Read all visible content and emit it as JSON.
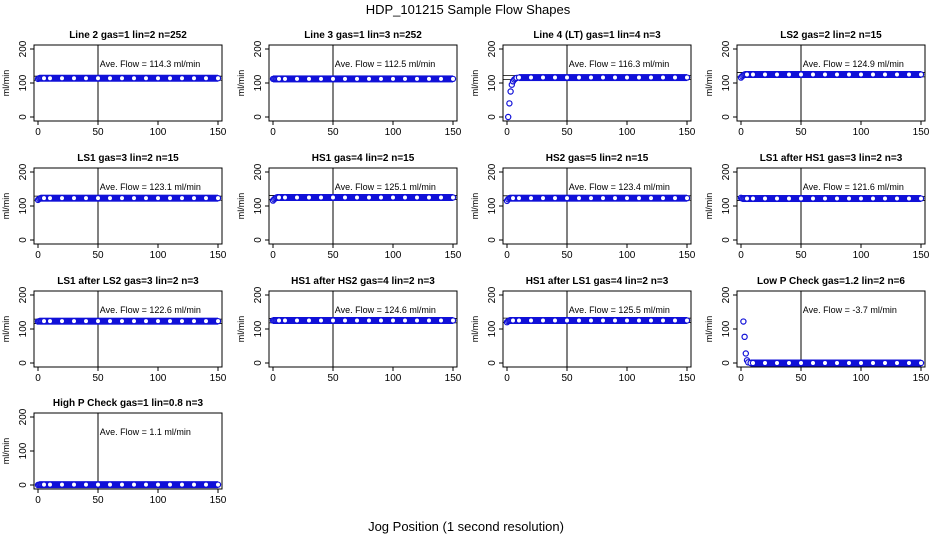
{
  "title": "HDP_101215  Sample Flow Shapes",
  "xlabel": "Jog Position (1 second resolution)",
  "colors": {
    "points": "#1010d8",
    "axis": "#000000"
  },
  "chart_data": [
    {
      "type": "scatter",
      "title": "Line 2 gas=1 lin=2 n=252",
      "ylabel": "ml/min",
      "annotation": "Ave. Flow =  114.3  ml/min",
      "avg": 114.3,
      "xlim": [
        0,
        150
      ],
      "ylim": [
        0,
        200
      ],
      "xticks": [
        0,
        50,
        100,
        150
      ],
      "yticks": [
        0,
        100,
        200
      ],
      "vline": 50,
      "hlines": [
        108,
        120
      ],
      "x": [
        0,
        1,
        2,
        3,
        4,
        5,
        10,
        20,
        30,
        40,
        50,
        60,
        70,
        80,
        90,
        100,
        110,
        120,
        130,
        140,
        150
      ],
      "y": [
        112,
        114,
        114,
        114,
        114,
        114,
        114,
        114,
        114,
        114,
        114,
        114,
        114,
        114,
        114,
        114,
        114,
        114,
        114,
        114,
        114
      ]
    },
    {
      "type": "scatter",
      "title": "Line 3 gas=1 lin=3 n=252",
      "ylabel": "ml/min",
      "annotation": "Ave. Flow =  112.5  ml/min",
      "avg": 112.5,
      "xlim": [
        0,
        150
      ],
      "ylim": [
        0,
        200
      ],
      "xticks": [
        0,
        50,
        100,
        150
      ],
      "yticks": [
        0,
        100,
        200
      ],
      "vline": 50,
      "hlines": [],
      "x": [
        0,
        1,
        2,
        3,
        4,
        5,
        10,
        20,
        30,
        40,
        50,
        60,
        70,
        80,
        90,
        100,
        110,
        120,
        130,
        140,
        150
      ],
      "y": [
        112,
        112,
        112,
        112,
        112,
        112,
        112,
        112,
        112,
        112,
        112,
        112,
        112,
        112,
        112,
        112,
        112,
        112,
        112,
        112,
        112
      ]
    },
    {
      "type": "scatter",
      "title": "Line 4 (LT) gas=1 lin=4 n=3",
      "ylabel": "ml/min",
      "annotation": "Ave. Flow =  116.3  ml/min",
      "avg": 116.3,
      "xlim": [
        0,
        150
      ],
      "ylim": [
        0,
        200
      ],
      "xticks": [
        0,
        50,
        100,
        150
      ],
      "yticks": [
        0,
        100,
        200
      ],
      "vline": 50,
      "hlines": [
        110,
        122
      ],
      "x": [
        1,
        2,
        3,
        4,
        5,
        6,
        7,
        8,
        10,
        20,
        30,
        40,
        50,
        60,
        70,
        80,
        90,
        100,
        110,
        120,
        130,
        140,
        150
      ],
      "y": [
        0,
        40,
        75,
        95,
        105,
        110,
        113,
        115,
        116,
        116,
        116,
        116,
        116,
        116,
        116,
        116,
        116,
        116,
        116,
        116,
        116,
        116,
        116
      ]
    },
    {
      "type": "scatter",
      "title": "LS2 gas=2 lin=2 n=15",
      "ylabel": "ml/min",
      "annotation": "Ave. Flow =  124.9  ml/min",
      "avg": 124.9,
      "xlim": [
        0,
        150
      ],
      "ylim": [
        0,
        200
      ],
      "xticks": [
        0,
        50,
        100,
        150
      ],
      "yticks": [
        0,
        100,
        200
      ],
      "vline": 50,
      "hlines": [
        118,
        131
      ],
      "x": [
        0,
        1,
        2,
        3,
        4,
        5,
        10,
        20,
        30,
        40,
        50,
        60,
        70,
        80,
        90,
        100,
        110,
        120,
        130,
        140,
        150
      ],
      "y": [
        116,
        120,
        123,
        125,
        125,
        125,
        125,
        125,
        125,
        125,
        125,
        125,
        125,
        125,
        125,
        125,
        125,
        125,
        125,
        125,
        125
      ]
    },
    {
      "type": "scatter",
      "title": "LS1 gas=3 lin=2 n=15",
      "ylabel": "ml/min",
      "annotation": "Ave. Flow =  123.1  ml/min",
      "avg": 123.1,
      "xlim": [
        0,
        150
      ],
      "ylim": [
        0,
        200
      ],
      "xticks": [
        0,
        50,
        100,
        150
      ],
      "yticks": [
        0,
        100,
        200
      ],
      "vline": 50,
      "hlines": [
        117,
        129
      ],
      "x": [
        0,
        1,
        2,
        3,
        4,
        5,
        10,
        20,
        30,
        40,
        50,
        60,
        70,
        80,
        90,
        100,
        110,
        120,
        130,
        140,
        150
      ],
      "y": [
        118,
        121,
        123,
        123,
        123,
        123,
        123,
        123,
        123,
        123,
        123,
        123,
        123,
        123,
        123,
        123,
        123,
        123,
        123,
        123,
        123
      ]
    },
    {
      "type": "scatter",
      "title": "HS1 gas=4 lin=2 n=15",
      "ylabel": "ml/min",
      "annotation": "Ave. Flow =  125.1  ml/min",
      "avg": 125.1,
      "xlim": [
        0,
        150
      ],
      "ylim": [
        0,
        200
      ],
      "xticks": [
        0,
        50,
        100,
        150
      ],
      "yticks": [
        0,
        100,
        200
      ],
      "vline": 50,
      "hlines": [
        119,
        131
      ],
      "x": [
        0,
        1,
        2,
        3,
        4,
        5,
        10,
        20,
        30,
        40,
        50,
        60,
        70,
        80,
        90,
        100,
        110,
        120,
        130,
        140,
        150
      ],
      "y": [
        116,
        120,
        123,
        125,
        125,
        125,
        125,
        125,
        125,
        125,
        125,
        125,
        125,
        125,
        125,
        125,
        125,
        125,
        125,
        125,
        125
      ]
    },
    {
      "type": "scatter",
      "title": "HS2 gas=5 lin=2 n=15",
      "ylabel": "ml/min",
      "annotation": "Ave. Flow =  123.4  ml/min",
      "avg": 123.4,
      "xlim": [
        0,
        150
      ],
      "ylim": [
        0,
        200
      ],
      "xticks": [
        0,
        50,
        100,
        150
      ],
      "yticks": [
        0,
        100,
        200
      ],
      "vline": 50,
      "hlines": [
        117,
        130
      ],
      "x": [
        0,
        1,
        2,
        3,
        4,
        5,
        10,
        20,
        30,
        40,
        50,
        60,
        70,
        80,
        90,
        100,
        110,
        120,
        130,
        140,
        150
      ],
      "y": [
        115,
        120,
        123,
        123,
        123,
        123,
        123,
        123,
        123,
        123,
        123,
        123,
        123,
        123,
        123,
        123,
        123,
        123,
        123,
        123,
        123
      ]
    },
    {
      "type": "scatter",
      "title": "LS1 after HS1 gas=3 lin=2 n=3",
      "ylabel": "ml/min",
      "annotation": "Ave. Flow =  121.6  ml/min",
      "avg": 121.6,
      "xlim": [
        0,
        150
      ],
      "ylim": [
        0,
        200
      ],
      "xticks": [
        0,
        50,
        100,
        150
      ],
      "yticks": [
        0,
        100,
        200
      ],
      "vline": 50,
      "hlines": [
        116,
        128
      ],
      "x": [
        0,
        1,
        2,
        3,
        4,
        5,
        10,
        20,
        30,
        40,
        50,
        60,
        70,
        80,
        90,
        100,
        110,
        120,
        130,
        140,
        150
      ],
      "y": [
        124,
        122,
        122,
        122,
        122,
        122,
        122,
        122,
        122,
        122,
        122,
        122,
        122,
        122,
        122,
        122,
        122,
        122,
        122,
        122,
        122
      ]
    },
    {
      "type": "scatter",
      "title": "LS1 after LS2 gas=3 lin=2 n=3",
      "ylabel": "ml/min",
      "annotation": "Ave. Flow =  122.6  ml/min",
      "avg": 122.6,
      "xlim": [
        0,
        150
      ],
      "ylim": [
        0,
        200
      ],
      "xticks": [
        0,
        50,
        100,
        150
      ],
      "yticks": [
        0,
        100,
        200
      ],
      "vline": 50,
      "hlines": [
        116,
        129
      ],
      "x": [
        0,
        1,
        2,
        3,
        4,
        5,
        10,
        20,
        30,
        40,
        50,
        60,
        70,
        80,
        90,
        100,
        110,
        120,
        130,
        140,
        150
      ],
      "y": [
        122,
        123,
        123,
        123,
        123,
        123,
        123,
        123,
        123,
        123,
        123,
        123,
        123,
        123,
        123,
        123,
        123,
        123,
        123,
        123,
        123
      ]
    },
    {
      "type": "scatter",
      "title": "HS1 after HS2 gas=4 lin=2 n=3",
      "ylabel": "ml/min",
      "annotation": "Ave. Flow =  124.6  ml/min",
      "avg": 124.6,
      "xlim": [
        0,
        150
      ],
      "ylim": [
        0,
        200
      ],
      "xticks": [
        0,
        50,
        100,
        150
      ],
      "yticks": [
        0,
        100,
        200
      ],
      "vline": 50,
      "hlines": [
        118,
        131
      ],
      "x": [
        0,
        1,
        2,
        3,
        4,
        5,
        10,
        20,
        30,
        40,
        50,
        60,
        70,
        80,
        90,
        100,
        110,
        120,
        130,
        140,
        150
      ],
      "y": [
        125,
        125,
        125,
        125,
        125,
        125,
        125,
        125,
        125,
        125,
        125,
        125,
        125,
        125,
        125,
        125,
        125,
        125,
        125,
        125,
        125
      ]
    },
    {
      "type": "scatter",
      "title": "HS1 after LS1 gas=4 lin=2 n=3",
      "ylabel": "ml/min",
      "annotation": "Ave. Flow =  125.5  ml/min",
      "avg": 125.5,
      "xlim": [
        0,
        150
      ],
      "ylim": [
        0,
        200
      ],
      "xticks": [
        0,
        50,
        100,
        150
      ],
      "yticks": [
        0,
        100,
        200
      ],
      "vline": 50,
      "hlines": [
        119,
        132
      ],
      "x": [
        0,
        1,
        2,
        3,
        4,
        5,
        10,
        20,
        30,
        40,
        50,
        60,
        70,
        80,
        90,
        100,
        110,
        120,
        130,
        140,
        150
      ],
      "y": [
        120,
        123,
        125,
        125,
        125,
        125,
        125,
        125,
        125,
        125,
        125,
        125,
        125,
        125,
        125,
        125,
        125,
        125,
        125,
        125,
        125
      ]
    },
    {
      "type": "scatter",
      "title": "Low P Check gas=1.2 lin=2 n=6",
      "ylabel": "ml/min",
      "annotation": "Ave. Flow =  -3.7  ml/min",
      "avg": -3.7,
      "xlim": [
        0,
        150
      ],
      "ylim": [
        0,
        200
      ],
      "xticks": [
        0,
        50,
        100,
        150
      ],
      "yticks": [
        0,
        100,
        200
      ],
      "vline": 50,
      "hlines": [],
      "x": [
        2,
        3,
        4,
        5,
        6,
        8,
        10,
        20,
        30,
        40,
        50,
        60,
        70,
        80,
        90,
        100,
        110,
        120,
        130,
        140,
        150
      ],
      "y": [
        122,
        77,
        28,
        8,
        2,
        0,
        0,
        0,
        0,
        0,
        0,
        0,
        0,
        0,
        0,
        0,
        0,
        0,
        0,
        0,
        0
      ]
    },
    {
      "type": "scatter",
      "title": "High P Check gas=1 lin=0.8 n=3",
      "ylabel": "ml/min",
      "annotation": "Ave. Flow =  1.1  ml/min",
      "avg": 1.1,
      "xlim": [
        0,
        150
      ],
      "ylim": [
        0,
        200
      ],
      "xticks": [
        0,
        50,
        100,
        150
      ],
      "yticks": [
        0,
        100,
        200
      ],
      "vline": 50,
      "hlines": [],
      "x": [
        0,
        1,
        2,
        3,
        4,
        5,
        10,
        20,
        30,
        40,
        50,
        60,
        70,
        80,
        90,
        100,
        110,
        120,
        130,
        140,
        150
      ],
      "y": [
        0,
        1,
        1,
        1,
        1,
        1,
        1,
        1,
        1,
        1,
        1,
        1,
        1,
        1,
        1,
        1,
        1,
        1,
        1,
        1,
        1
      ]
    }
  ]
}
